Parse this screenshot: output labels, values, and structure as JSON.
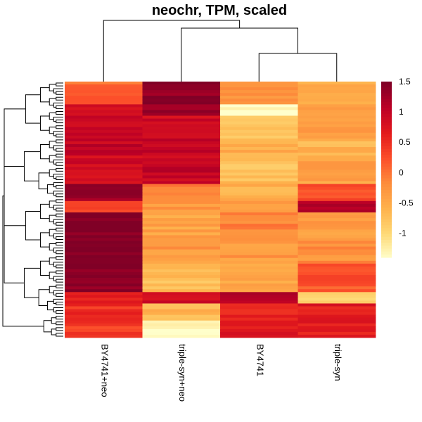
{
  "chart_data": {
    "type": "heatmap",
    "title": "neochr, TPM, scaled",
    "columns": [
      "BY4741+neo",
      "triple-syn+neo",
      "BY4741",
      "triple-syn"
    ],
    "color_scale": {
      "range": [
        -1.4,
        1.5
      ],
      "colors": [
        "#FFFFCC",
        "#FED976",
        "#FEB24C",
        "#FD8D3C",
        "#FC4E2A",
        "#E31A1C",
        "#BD0026",
        "#800026"
      ],
      "ticks": [
        1.5,
        1,
        0.5,
        0,
        -0.5,
        -1
      ],
      "tick_labels": [
        "1.5",
        "1",
        "0.5",
        "0",
        "-0.5",
        "-1"
      ]
    },
    "row_blocks": [
      {
        "rows": 8,
        "values": [
          0.1,
          1.4,
          -0.2,
          -0.5
        ]
      },
      {
        "rows": 4,
        "values": [
          0.8,
          1.3,
          -1.4,
          -0.3
        ]
      },
      {
        "rows": 8,
        "values": [
          0.9,
          0.9,
          -0.8,
          -0.3
        ]
      },
      {
        "rows": 6,
        "values": [
          1.0,
          1.0,
          -0.5,
          -0.6
        ]
      },
      {
        "rows": 10,
        "values": [
          0.9,
          1.0,
          -0.7,
          -0.4
        ]
      },
      {
        "rows": 6,
        "values": [
          1.3,
          -0.1,
          -0.6,
          0.2
        ]
      },
      {
        "rows": 4,
        "values": [
          0.3,
          -0.3,
          -0.4,
          1.2
        ]
      },
      {
        "rows": 10,
        "values": [
          1.5,
          -0.4,
          -0.1,
          -0.3
        ]
      },
      {
        "rows": 8,
        "values": [
          1.5,
          -0.3,
          -0.3,
          -0.2
        ]
      },
      {
        "rows": 10,
        "values": [
          1.4,
          -0.7,
          -0.5,
          0.2
        ]
      },
      {
        "rows": 4,
        "values": [
          0.6,
          0.9,
          1.1,
          -0.9
        ]
      },
      {
        "rows": 6,
        "values": [
          0.5,
          -0.6,
          0.6,
          0.7
        ]
      },
      {
        "rows": 6,
        "values": [
          0.4,
          -1.3,
          0.7,
          0.7
        ]
      }
    ],
    "legend_position": "right",
    "column_dendrogram": true,
    "row_dendrogram": true
  }
}
